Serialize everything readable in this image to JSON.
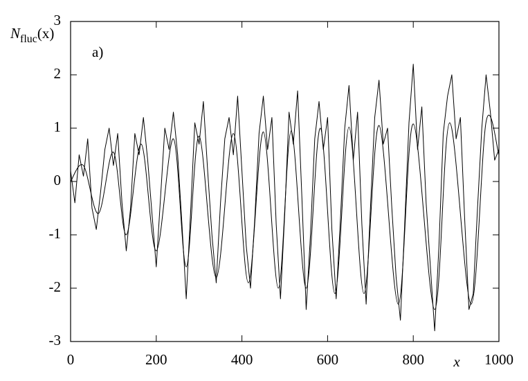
{
  "chart_data": {
    "type": "line",
    "y_label": {
      "symbol": "N",
      "subscript": "fluc",
      "argument": "(x)"
    },
    "x_label": "x",
    "annotation": "a)",
    "xlim": [
      0,
      1000
    ],
    "xticks": [
      0,
      200,
      400,
      600,
      800,
      1000
    ],
    "ylim": [
      -3,
      3
    ],
    "yticks": [
      -3,
      -2,
      -1,
      0,
      1,
      2,
      3
    ],
    "series": [
      {
        "color": "#000000",
        "curve": "straight",
        "x": [
          0,
          10,
          20,
          30,
          40,
          50,
          60,
          70,
          80,
          90,
          100,
          110,
          120,
          130,
          140,
          150,
          160,
          170,
          180,
          190,
          200,
          210,
          220,
          230,
          240,
          250,
          260,
          270,
          280,
          290,
          300,
          310,
          320,
          330,
          340,
          350,
          360,
          370,
          380,
          390,
          400,
          410,
          420,
          430,
          440,
          450,
          460,
          470,
          480,
          490,
          500,
          510,
          520,
          530,
          540,
          550,
          560,
          570,
          580,
          590,
          600,
          610,
          620,
          630,
          640,
          650,
          660,
          670,
          680,
          690,
          700,
          710,
          720,
          730,
          740,
          750,
          760,
          770,
          780,
          790,
          800,
          810,
          820,
          830,
          840,
          850,
          860,
          870,
          880,
          890,
          900,
          910,
          920,
          930,
          940,
          950,
          960,
          970,
          980,
          990,
          1000
        ],
        "values": [
          0.2,
          -0.4,
          0.5,
          0.1,
          0.8,
          -0.5,
          -0.9,
          -0.2,
          0.6,
          1.0,
          0.3,
          0.9,
          -0.4,
          -1.3,
          -0.5,
          0.9,
          0.5,
          1.2,
          0.4,
          -0.6,
          -1.6,
          -0.3,
          1.0,
          0.6,
          1.3,
          0.5,
          -0.8,
          -2.2,
          -0.6,
          1.1,
          0.7,
          1.5,
          0.2,
          -1.0,
          -1.9,
          -0.4,
          0.8,
          1.2,
          0.5,
          1.6,
          0.2,
          -1.2,
          -2.0,
          -0.7,
          0.9,
          1.6,
          0.6,
          1.2,
          -0.8,
          -2.2,
          -0.6,
          1.3,
          0.7,
          1.7,
          -0.3,
          -2.4,
          -1.0,
          0.8,
          1.5,
          0.6,
          1.2,
          -0.9,
          -2.2,
          -0.7,
          1.0,
          1.8,
          0.4,
          1.3,
          -0.8,
          -2.3,
          -0.5,
          1.2,
          1.9,
          0.7,
          1.0,
          -0.5,
          -1.8,
          -2.6,
          -0.8,
          1.1,
          2.2,
          0.6,
          1.4,
          -0.4,
          -1.6,
          -2.8,
          -1.2,
          0.9,
          1.6,
          2.0,
          0.8,
          1.2,
          -0.7,
          -2.4,
          -2.1,
          -0.5,
          1.0,
          2.0,
          1.3,
          0.4,
          0.6
        ]
      },
      {
        "color": "#000000",
        "curve": "smooth",
        "x": [
          0,
          30,
          65,
          100,
          130,
          165,
          200,
          240,
          270,
          300,
          340,
          380,
          415,
          450,
          485,
          515,
          550,
          583,
          617,
          650,
          685,
          720,
          765,
          800,
          850,
          885,
          935,
          970,
          1000
        ],
        "values": [
          0,
          0.3,
          -0.6,
          0.55,
          -1.0,
          0.7,
          -1.3,
          0.8,
          -1.6,
          0.85,
          -1.8,
          0.9,
          -1.9,
          0.93,
          -2.0,
          0.95,
          -2.0,
          1.0,
          -2.1,
          1.02,
          -2.1,
          1.05,
          -2.3,
          1.08,
          -2.4,
          1.1,
          -2.3,
          1.12,
          0.5
        ]
      }
    ]
  }
}
